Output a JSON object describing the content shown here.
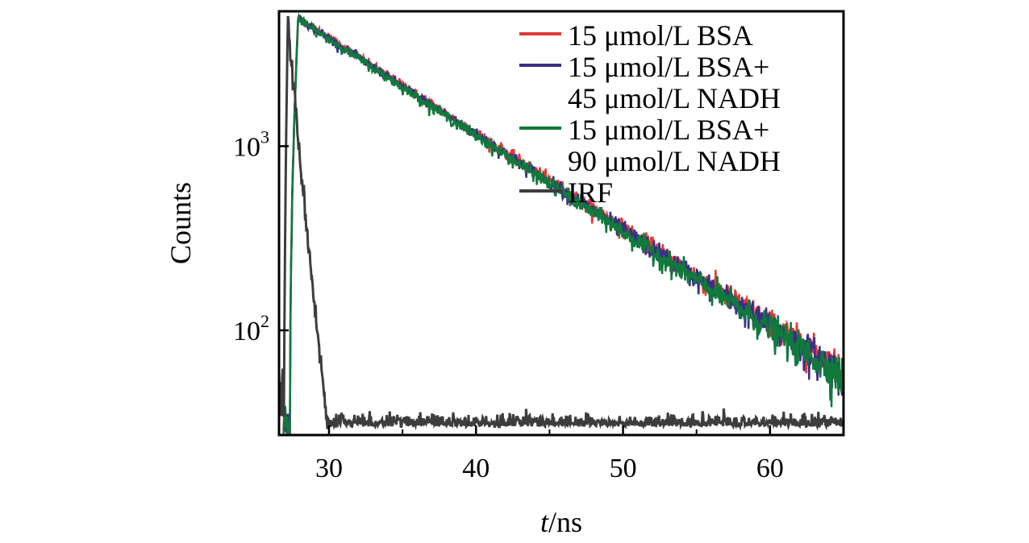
{
  "chart_data": {
    "type": "line",
    "title": "",
    "xlabel_italic": "t",
    "xlabel_unit": "/ns",
    "ylabel": "Counts",
    "xlim": [
      26.6,
      65
    ],
    "ylim": [
      27,
      5400
    ],
    "yscale": "log",
    "grid": false,
    "legend_placement": "top-right",
    "x_ticks": [
      {
        "value": 30,
        "label": "30"
      },
      {
        "value": 40,
        "label": "40"
      },
      {
        "value": 50,
        "label": "50"
      },
      {
        "value": 60,
        "label": "60"
      }
    ],
    "y_ticks": [
      {
        "value": 100,
        "base": "10",
        "exp": "2"
      },
      {
        "value": 1000,
        "base": "10",
        "exp": "3"
      }
    ],
    "series": [
      {
        "name_lines": [
          "15 μmol/L BSA"
        ],
        "color": "#e03a36",
        "peak_x": 27.9,
        "peak_y": 5000,
        "tail_y_at_65": 60,
        "noise": 0.1
      },
      {
        "name_lines": [
          "15 μmol/L BSA+",
          "45 μmol/L NADH"
        ],
        "color": "#3b2f86",
        "peak_x": 27.9,
        "peak_y": 4950,
        "tail_y_at_65": 58,
        "noise": 0.11
      },
      {
        "name_lines": [
          "15 μmol/L BSA+",
          "90 μmol/L NADH"
        ],
        "color": "#107a3c",
        "peak_x": 27.9,
        "peak_y": 4900,
        "tail_y_at_65": 56,
        "noise": 0.12
      },
      {
        "name_lines": [
          "IRF"
        ],
        "color": "#3d3d3d",
        "peak_x": 27.2,
        "peak_y": 5100,
        "background_y": 30,
        "noise": 0.05
      }
    ]
  }
}
